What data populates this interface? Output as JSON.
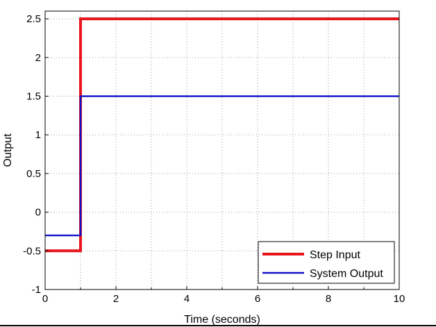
{
  "chart_data": {
    "type": "line",
    "title": "",
    "xlabel": "Time (seconds)",
    "ylabel": "Output",
    "xlim": [
      0,
      10
    ],
    "ylim": [
      -1,
      2.6
    ],
    "xticks": [
      0,
      2,
      4,
      6,
      8,
      10
    ],
    "xtick_labels": [
      "0",
      "2",
      "4",
      "6",
      "8",
      "10"
    ],
    "yticks": [
      -1,
      -0.5,
      0,
      0.5,
      1,
      1.5,
      2,
      2.5
    ],
    "ytick_labels": [
      "-1",
      "-0.5",
      "0",
      "0.5",
      "1",
      "1.5",
      "2",
      "2.5"
    ],
    "grid": true,
    "legend_position": "bottom-right",
    "series": [
      {
        "name": "Step Input",
        "color": "#e8141b",
        "line_width": "thick",
        "x": [
          0,
          1,
          1,
          10
        ],
        "y": [
          -0.5,
          -0.5,
          2.5,
          2.5
        ]
      },
      {
        "name": "System Output",
        "color": "#1010c8",
        "line_width": "normal",
        "x": [
          0,
          1,
          1,
          10
        ],
        "y": [
          -0.3,
          -0.3,
          1.5,
          1.5
        ]
      }
    ]
  }
}
